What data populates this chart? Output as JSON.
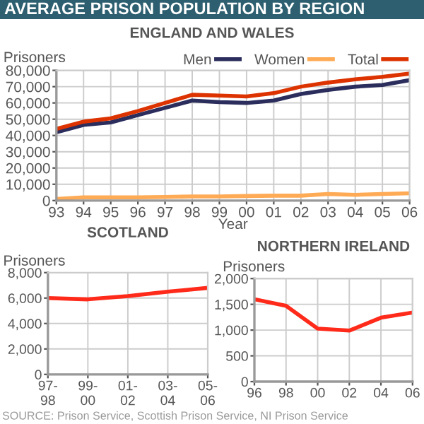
{
  "chart_data": [
    {
      "type": "line",
      "title": "AVERAGE PRISON POPULATION BY REGION",
      "subtitle": "ENGLAND AND WALES",
      "ylabel": "Prisoners",
      "xlabel": "Year",
      "categories": [
        "93",
        "94",
        "95",
        "96",
        "97",
        "98",
        "99",
        "00",
        "01",
        "02",
        "03",
        "04",
        "05",
        "06"
      ],
      "series": [
        {
          "name": "Men",
          "color": "#2b2d5c",
          "values": [
            42000,
            46500,
            48000,
            52500,
            57000,
            61500,
            60500,
            60000,
            61500,
            65500,
            68000,
            70000,
            71000,
            74000
          ]
        },
        {
          "name": "Women",
          "color": "#ffaa55",
          "values": [
            1000,
            2000,
            2000,
            2000,
            2200,
            2500,
            2500,
            2800,
            3000,
            3000,
            4000,
            3500,
            4000,
            4500
          ]
        },
        {
          "name": "Total",
          "color": "#dd3300",
          "values": [
            44000,
            48500,
            50500,
            55000,
            60000,
            65000,
            64500,
            64000,
            66000,
            70000,
            72500,
            74500,
            76000,
            78000
          ]
        }
      ],
      "ylim": [
        0,
        80000
      ],
      "yticks": [
        {
          "value": 0,
          "label": "0"
        },
        {
          "value": 10000,
          "label": "10,000"
        },
        {
          "value": 20000,
          "label": "20,000"
        },
        {
          "value": 30000,
          "label": "30,000"
        },
        {
          "value": 40000,
          "label": "40,000"
        },
        {
          "value": 50000,
          "label": "50,000"
        },
        {
          "value": 60000,
          "label": "60,000"
        },
        {
          "value": 70000,
          "label": "70,000"
        },
        {
          "value": 80000,
          "label": "80,000"
        }
      ],
      "grid": true,
      "legend": "top right",
      "annotations": [
        "SOURCE: Prison Service, Scottish Prison Service, NI Prison Service"
      ]
    },
    {
      "type": "line",
      "title": "SCOTLAND",
      "ylabel": "Prisoners",
      "categories": [
        "97-\n98",
        "99-\n00",
        "01-\n02",
        "03-\n04",
        "05-\n06"
      ],
      "series": [
        {
          "color": "#ff2a1a",
          "values": [
            6000,
            5900,
            6150,
            6500,
            6800
          ]
        }
      ],
      "ylim": [
        0,
        8000
      ],
      "yticks": [
        {
          "value": 0,
          "label": "0"
        },
        {
          "value": 2000,
          "label": "2,000"
        },
        {
          "value": 4000,
          "label": "4,000"
        },
        {
          "value": 6000,
          "label": "6,000"
        },
        {
          "value": 8000,
          "label": "8,000"
        }
      ],
      "grid": true
    },
    {
      "type": "line",
      "title": "NORTHERN IRELAND",
      "ylabel": "Prisoners",
      "categories": [
        "96",
        "98",
        "00",
        "02",
        "04",
        "06"
      ],
      "series": [
        {
          "color": "#ff2a1a",
          "values": [
            1600,
            1470,
            1030,
            990,
            1240,
            1340
          ]
        }
      ],
      "ylim": [
        0,
        2000
      ],
      "yticks": [
        {
          "value": 0,
          "label": "0"
        },
        {
          "value": 500,
          "label": "500"
        },
        {
          "value": 1000,
          "label": "1,000"
        },
        {
          "value": 1500,
          "label": "1,500"
        },
        {
          "value": 2000,
          "label": "2,000"
        }
      ],
      "grid": true
    }
  ]
}
